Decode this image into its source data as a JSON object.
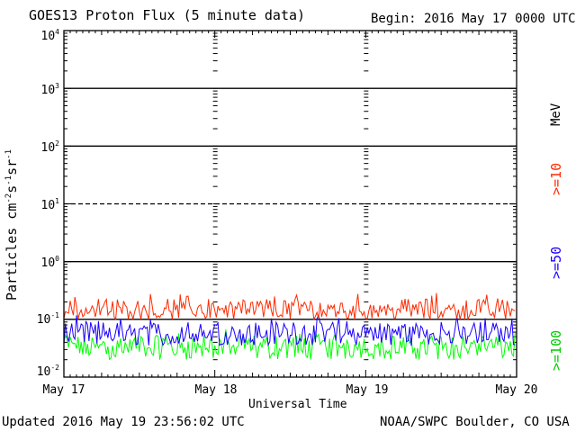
{
  "header": {
    "title": "GOES13 Proton Flux (5 minute data)",
    "begin": "Begin: 2016 May 17 0000 UTC"
  },
  "footer": {
    "updated": "Updated 2016 May 19 23:56:02 UTC",
    "credit": "NOAA/SWPC Boulder, CO USA"
  },
  "colors": {
    "p10": "#ff2a00",
    "p50": "#1a00ff",
    "p100": "#00ff00",
    "axis": "#000000",
    "background": "#ffffff"
  },
  "chart_data": {
    "type": "line",
    "title": "GOES13 Proton Flux (5 minute data)",
    "xlabel": "Universal Time",
    "ylabel_base": "Particles cm",
    "ylabel": "Particles cm-2s-1sr-1",
    "yscale": "log",
    "ylim": [
      0.01,
      10000
    ],
    "xlim": [
      "2016-05-17",
      "2016-05-20"
    ],
    "x_ticks": [
      "May 17",
      "May 18",
      "May 19",
      "May 20"
    ],
    "y_ticks": [
      {
        "value": 0.01,
        "base": "10",
        "exp": "-2"
      },
      {
        "value": 0.1,
        "base": "10",
        "exp": "-1"
      },
      {
        "value": 1,
        "base": "10",
        "exp": "0"
      },
      {
        "value": 10,
        "base": "10",
        "exp": "1"
      },
      {
        "value": 100,
        "base": "10",
        "exp": "2"
      },
      {
        "value": 1000,
        "base": "10",
        "exp": "3"
      },
      {
        "value": 10000,
        "base": "10",
        "exp": "4"
      }
    ],
    "thresholds": [
      {
        "value": 0.1,
        "style": "solid"
      },
      {
        "value": 1,
        "style": "solid"
      },
      {
        "value": 10,
        "style": "dashed"
      },
      {
        "value": 100,
        "style": "solid"
      },
      {
        "value": 1000,
        "style": "solid"
      }
    ],
    "units_label": "MeV",
    "cadence_minutes": 5,
    "series": [
      {
        "name": ">=10",
        "color": "#ff2a00",
        "typical": 0.15,
        "low": 0.1,
        "high": 0.3
      },
      {
        "name": ">=50",
        "color": "#1a00ff",
        "typical": 0.06,
        "low": 0.035,
        "high": 0.12
      },
      {
        "name": ">=100",
        "color": "#00ff00",
        "typical": 0.035,
        "low": 0.02,
        "high": 0.07
      }
    ]
  }
}
